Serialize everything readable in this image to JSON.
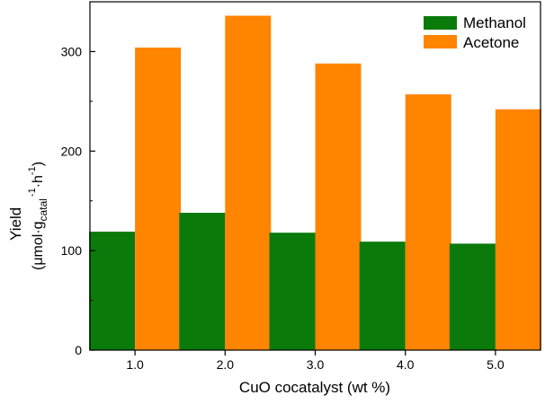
{
  "chart_data": {
    "type": "bar",
    "categories": [
      "1.0",
      "2.0",
      "3.0",
      "4.0",
      "5.0"
    ],
    "series": [
      {
        "name": "Methanol",
        "color": "#0a7a0a",
        "values": [
          119,
          138,
          118,
          109,
          107
        ]
      },
      {
        "name": "Acetone",
        "color": "#ff8400",
        "values": [
          304,
          336,
          288,
          257,
          242
        ]
      }
    ],
    "xlabel": "CuO cocatalyst (wt %)",
    "ylabel": {
      "line1": "Yield",
      "line2_prefix": "(μmol·g",
      "line2_sub": "catal",
      "line2_mid": " ",
      "line2_sup1": "-1",
      "line2_h": "·h",
      "line2_sup2": "-1",
      "line2_suffix": ")"
    },
    "y_ticks": [
      "0",
      "100",
      "200",
      "300"
    ],
    "ylim": [
      0,
      350
    ],
    "grid": false,
    "legend_position": "top-right"
  }
}
